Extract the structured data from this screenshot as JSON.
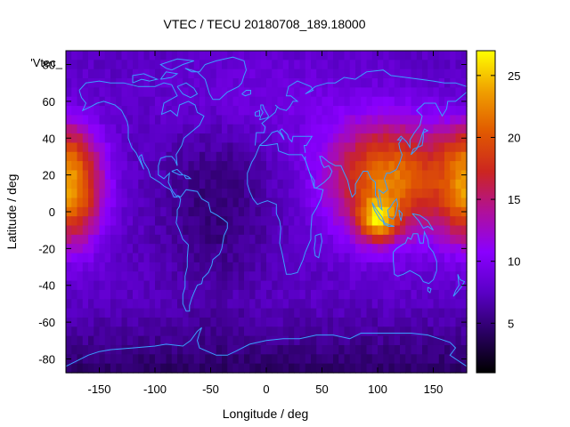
{
  "chart_data": {
    "type": "heatmap",
    "title": "VTEC / TECU 20180708_189.18000",
    "xlabel": "Longitude / deg",
    "ylabel": "Latitude / deg",
    "key_label": "'Vtec_",
    "xlim": [
      -180,
      180
    ],
    "ylim": [
      -87.5,
      87.5
    ],
    "x_ticks": [
      {
        "value": -150,
        "label": "-150"
      },
      {
        "value": -100,
        "label": "-100"
      },
      {
        "value": -50,
        "label": "-50"
      },
      {
        "value": 0,
        "label": "0"
      },
      {
        "value": 50,
        "label": "50"
      },
      {
        "value": 100,
        "label": "100"
      },
      {
        "value": 150,
        "label": "150"
      }
    ],
    "y_ticks": [
      {
        "value": 80,
        "label": "80"
      },
      {
        "value": 60,
        "label": "60"
      },
      {
        "value": 40,
        "label": "40"
      },
      {
        "value": 20,
        "label": "20"
      },
      {
        "value": 0,
        "label": "0"
      },
      {
        "value": -20,
        "label": "-20"
      },
      {
        "value": -40,
        "label": "-40"
      },
      {
        "value": -60,
        "label": "-60"
      },
      {
        "value": -80,
        "label": "-80"
      }
    ],
    "colorbar": {
      "min": 1,
      "max": 27,
      "ticks": [
        {
          "value": 5,
          "label": "5"
        },
        {
          "value": 10,
          "label": "10"
        },
        {
          "value": 15,
          "label": "15"
        },
        {
          "value": 20,
          "label": "20"
        },
        {
          "value": 25,
          "label": "25"
        }
      ],
      "palette": [
        "#000000",
        "#2a0063",
        "#5a00c6",
        "#8a00ff",
        "#b0109a",
        "#cc2620",
        "#e15a00",
        "#f0a000",
        "#ffff00"
      ]
    },
    "grid": false,
    "coastline_color": "#3aa0ff",
    "grid_resolution_deg": 5,
    "peaks": [
      {
        "lon": 100,
        "lat": -5,
        "value": 26
      },
      {
        "lon": -170,
        "lat": 12,
        "value": 23
      }
    ]
  }
}
